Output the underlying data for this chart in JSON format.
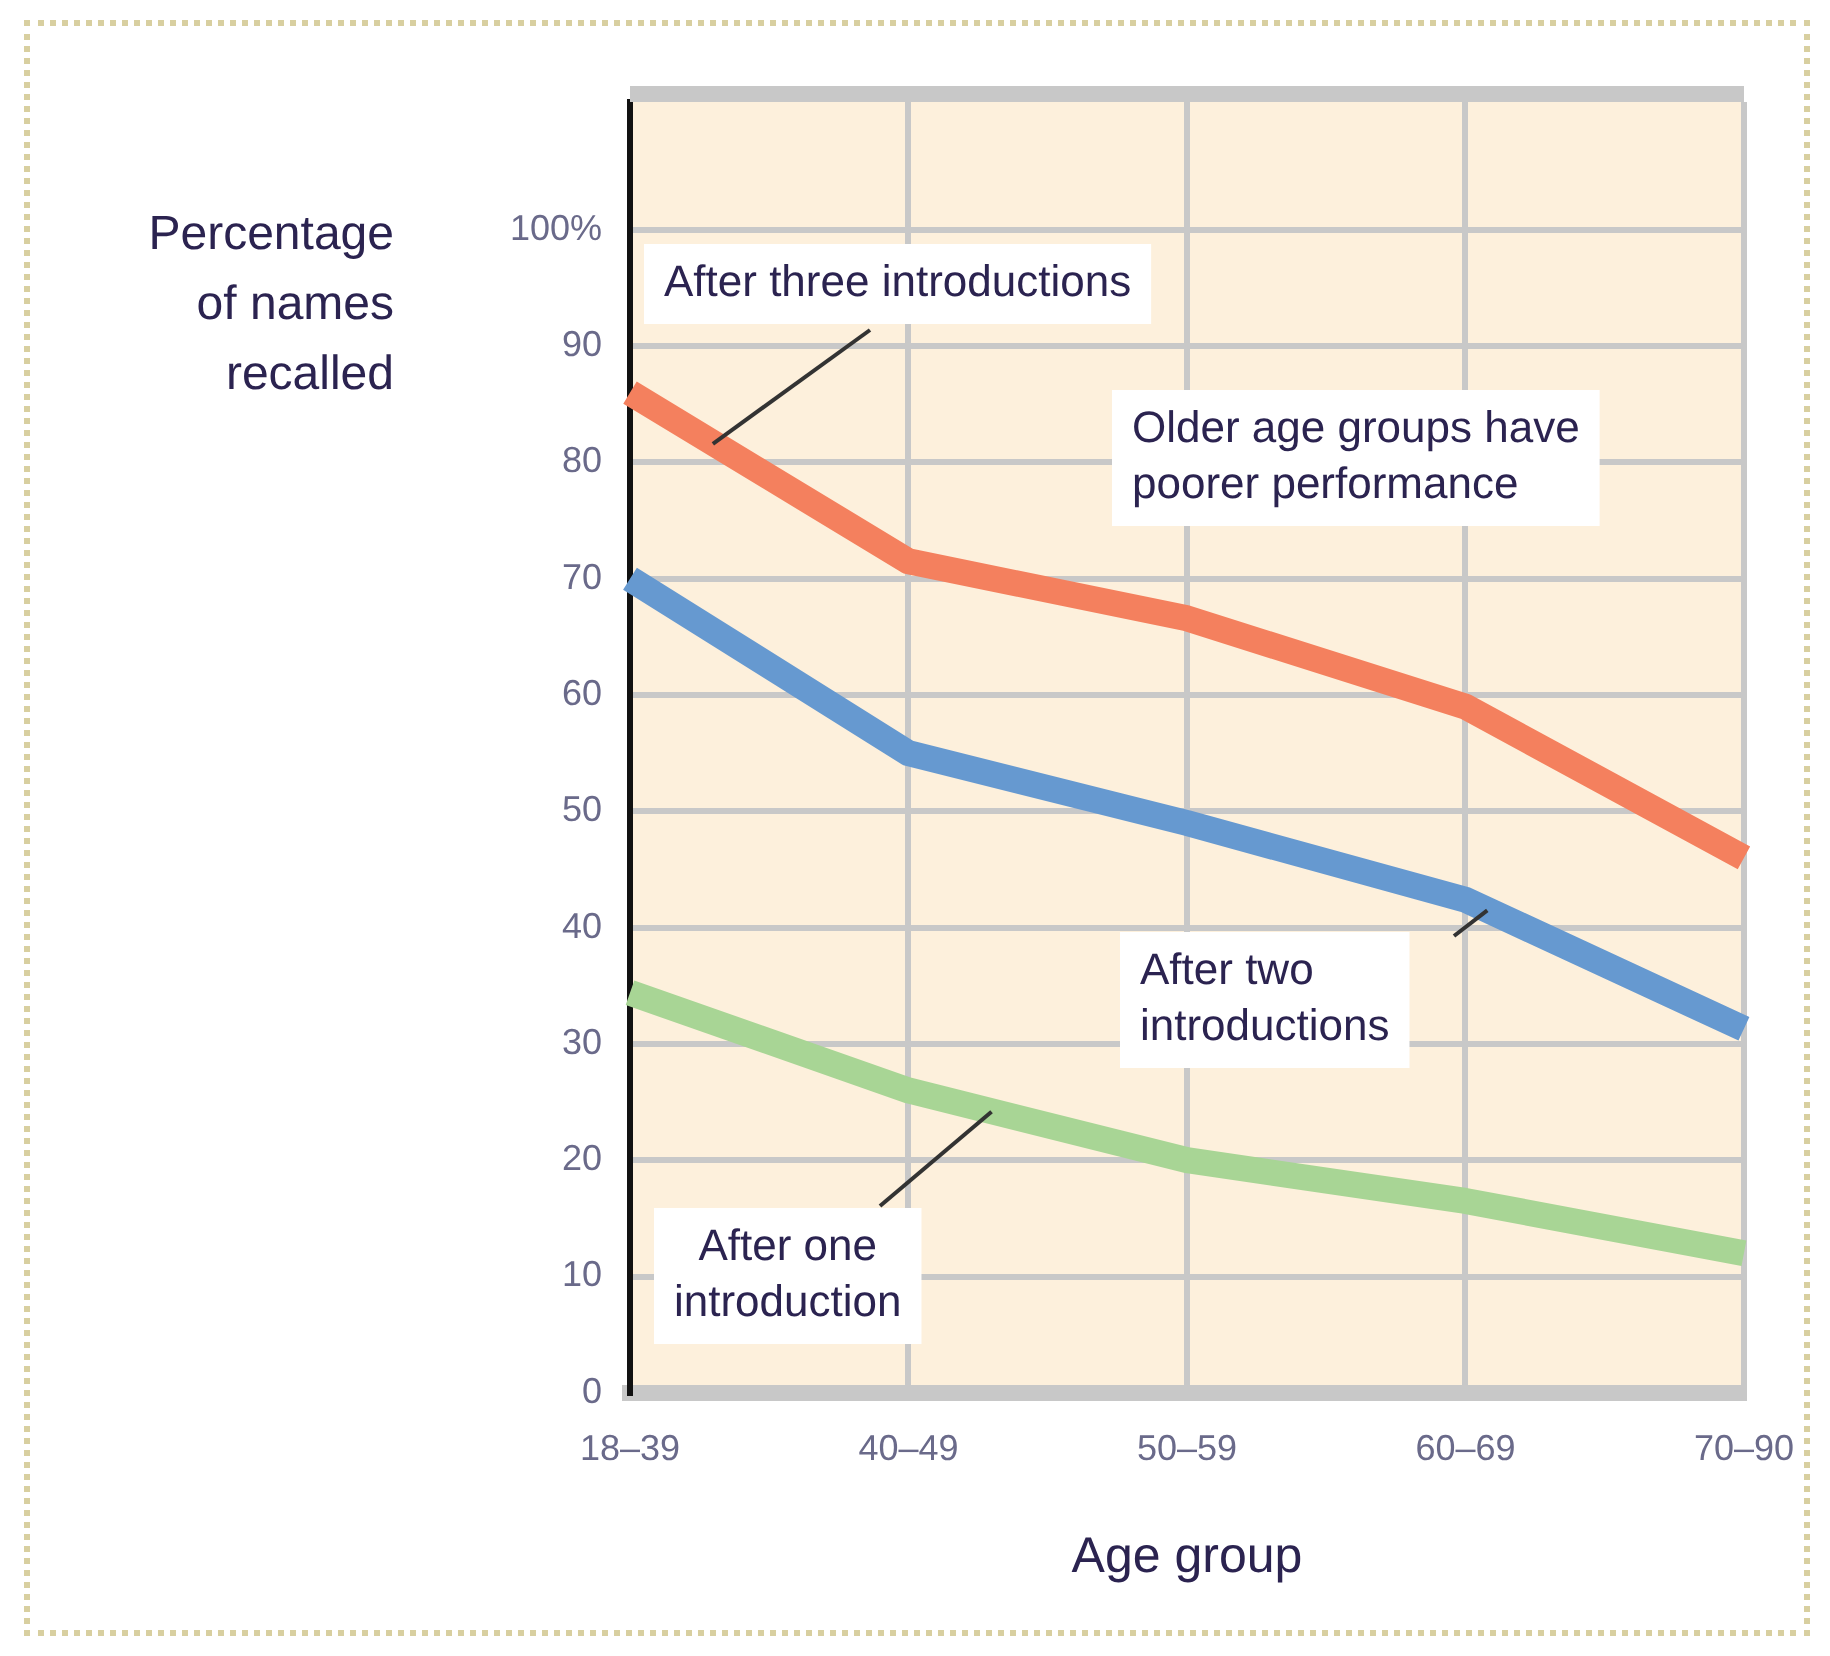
{
  "chart_data": {
    "type": "line",
    "categories": [
      "18–39",
      "40–49",
      "50–59",
      "60–69",
      "70–90"
    ],
    "xlabel": "Age group",
    "ylabel": "Percentage of names recalled",
    "ylim": [
      0,
      111
    ],
    "yticks": [
      0,
      10,
      20,
      30,
      40,
      50,
      60,
      70,
      80,
      90,
      {
        "value": 100,
        "label": "100%"
      }
    ],
    "grid": true,
    "legend": false,
    "marker": "none",
    "line_style": "solid",
    "series": [
      {
        "name": "After three introductions",
        "color": "#f4805e",
        "values": [
          86,
          71.5,
          66.6,
          59,
          46
        ]
      },
      {
        "name": "After two introductions",
        "color": "#6699d0",
        "values": [
          70,
          55,
          49,
          42.4,
          31.3
        ]
      },
      {
        "name": "After one introduction",
        "color": "#a8d595",
        "values": [
          34.4,
          26,
          20,
          16.5,
          12
        ]
      }
    ],
    "annotations": [
      "Older age groups have poorer performance"
    ]
  }
}
